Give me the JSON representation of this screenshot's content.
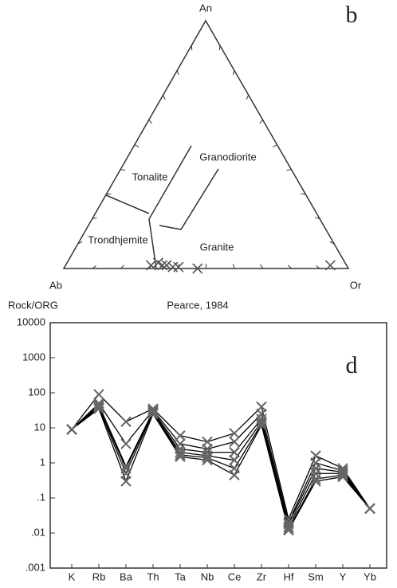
{
  "ternary": {
    "label": "b",
    "vertices": {
      "top": "An",
      "left": "Ab",
      "right": "Or"
    },
    "fields": {
      "tonalite": "Tonalite",
      "granodiorite": "Granodiorite",
      "trondhjemite": "Trondhjemite",
      "granite": "Granite"
    },
    "points": [
      {
        "an": 1.3,
        "or": 30
      },
      {
        "an": 2.3,
        "or": 32
      },
      {
        "an": 1.3,
        "or": 34
      },
      {
        "an": 1.3,
        "or": 35.5
      },
      {
        "an": 0.6,
        "or": 38
      },
      {
        "an": 0.6,
        "or": 40
      },
      {
        "an": 0,
        "or": 47
      },
      {
        "an": 1.3,
        "or": 93
      }
    ]
  },
  "chart_data": {
    "type": "line",
    "title": "Pearce, 1984",
    "y_label": "Rock/ORG",
    "panel_label": "d",
    "categories": [
      "K",
      "Rb",
      "Ba",
      "Th",
      "Ta",
      "Nb",
      "Ce",
      "Zr",
      "Hf",
      "Sm",
      "Y",
      "Yb"
    ],
    "series": [
      {
        "color": "#000000",
        "values": [
          9,
          90,
          15,
          35,
          6,
          4,
          7,
          40,
          0.025,
          1.6,
          0.7,
          0.05
        ]
      },
      {
        "color": "#000000",
        "values": [
          9,
          50,
          3.5,
          32,
          3.5,
          2.5,
          4,
          25,
          0.02,
          1,
          0.6,
          0.05
        ]
      },
      {
        "color": "#000000",
        "values": [
          9,
          45,
          0.8,
          30,
          2.5,
          2,
          2,
          18,
          0.018,
          0.7,
          0.55,
          0.05
        ]
      },
      {
        "color": "#000000",
        "values": [
          9,
          40,
          0.7,
          28,
          2,
          1.6,
          1.2,
          15,
          0.015,
          0.5,
          0.5,
          0.05
        ]
      },
      {
        "color": "#000000",
        "values": [
          9,
          38,
          0.5,
          27,
          1.7,
          1.4,
          0.7,
          13,
          0.013,
          0.35,
          0.45,
          0.05
        ]
      },
      {
        "color": "#000000",
        "values": [
          9,
          35,
          0.3,
          25,
          1.5,
          1.2,
          0.45,
          12,
          0.012,
          0.3,
          0.4,
          0.05
        ]
      }
    ],
    "marker_color": "#666666",
    "log_y": true,
    "ylim": [
      0.001,
      10000
    ],
    "yticks": [
      10000,
      1000,
      100,
      10,
      1,
      {
        "value": 0.1,
        "label": ".1"
      },
      {
        "value": 0.01,
        "label": ".01"
      },
      {
        "value": 0.001,
        "label": ".001"
      }
    ]
  }
}
